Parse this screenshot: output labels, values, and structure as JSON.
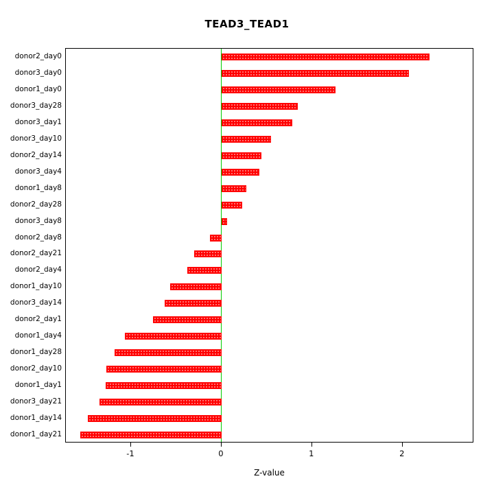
{
  "chart_data": {
    "type": "bar",
    "orientation": "horizontal",
    "title": "TEAD3_TEAD1",
    "xlabel": "Z-value",
    "ylabel": "",
    "xlim": [
      -1.72,
      2.79
    ],
    "xticks": [
      -1,
      0,
      1,
      2
    ],
    "grid": false,
    "legend": false,
    "bar_color": "#ff0000",
    "zero_line_color": "#00cc00",
    "categories": [
      "donor2_day0",
      "donor3_day0",
      "donor1_day0",
      "donor3_day28",
      "donor3_day1",
      "donor3_day10",
      "donor2_day14",
      "donor3_day4",
      "donor1_day8",
      "donor2_day28",
      "donor3_day8",
      "donor2_day8",
      "donor2_day21",
      "donor2_day4",
      "donor1_day10",
      "donor3_day14",
      "donor2_day1",
      "donor1_day4",
      "donor1_day28",
      "donor2_day10",
      "donor1_day1",
      "donor3_day21",
      "donor1_day14",
      "donor1_day21"
    ],
    "values": [
      2.3,
      2.07,
      1.26,
      0.84,
      0.78,
      0.55,
      0.44,
      0.42,
      0.27,
      0.23,
      0.06,
      -0.13,
      -0.3,
      -0.38,
      -0.57,
      -0.63,
      -0.76,
      -1.07,
      -1.18,
      -1.27,
      -1.28,
      -1.35,
      -1.48,
      -1.56
    ]
  }
}
